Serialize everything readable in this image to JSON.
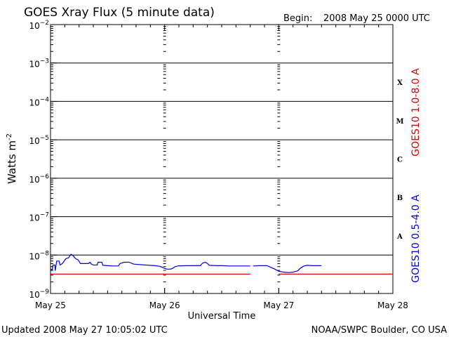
{
  "chart_data": {
    "type": "line",
    "title": "GOES Xray Flux (5 minute data)",
    "begin_label": "Begin:",
    "begin_value": "2008 May 25 0000 UTC",
    "xlabel": "Universal Time",
    "ylabel": "Watts m",
    "ylabel_exp": "-2",
    "x_tick_labels": [
      "May 25",
      "May 26",
      "May 27",
      "May 28"
    ],
    "x_unit": "hours since 2008 May 25 0000 UTC",
    "xlim": [
      0,
      72
    ],
    "y_scale": "log",
    "ylim_exp": [
      -9,
      -2
    ],
    "y_tick_exponents": [
      -9,
      -8,
      -7,
      -6,
      -5,
      -4,
      -3,
      -2
    ],
    "y_tick_base": "10",
    "flare_classes": [
      {
        "label": "A",
        "exp": -8
      },
      {
        "label": "B",
        "exp": -7
      },
      {
        "label": "C",
        "exp": -6
      },
      {
        "label": "M",
        "exp": -5
      },
      {
        "label": "X",
        "exp": -4
      }
    ],
    "legend_placement": "right, rotated",
    "series": [
      {
        "name": "GOES10 1.0-8.0 A",
        "color": "#dd0000",
        "segments": [
          [
            [
              0,
              3.2e-09
            ],
            [
              42,
              3.2e-09
            ]
          ],
          [
            [
              48,
              3.2e-09
            ],
            [
              72,
              3.2e-09
            ]
          ]
        ]
      },
      {
        "name": "GOES10 0.5-4.0 A",
        "color": "#0000dd",
        "segments": [
          [
            [
              0.0,
              4.2e-09
            ],
            [
              0.4,
              4.2e-09
            ],
            [
              0.5,
              5.5e-09
            ],
            [
              0.9,
              5.5e-09
            ],
            [
              1.0,
              4e-09
            ],
            [
              1.3,
              7e-09
            ],
            [
              1.8,
              7e-09
            ],
            [
              2.0,
              5.5e-09
            ],
            [
              2.5,
              6e-09
            ],
            [
              3.2,
              8e-09
            ],
            [
              3.8,
              8.5e-09
            ],
            [
              4.3,
              1.05e-08
            ],
            [
              4.8,
              9.5e-09
            ],
            [
              5.3,
              8e-09
            ],
            [
              5.8,
              7.5e-09
            ],
            [
              6.3,
              6e-09
            ],
            [
              8.0,
              6e-09
            ],
            [
              8.3,
              6.5e-09
            ],
            [
              8.6,
              5.8e-09
            ],
            [
              9.0,
              5.5e-09
            ],
            [
              9.8,
              5.5e-09
            ],
            [
              10.0,
              6.5e-09
            ],
            [
              10.8,
              6.5e-09
            ],
            [
              11.0,
              5.4e-09
            ],
            [
              12.0,
              5.3e-09
            ],
            [
              13.0,
              5.2e-09
            ],
            [
              14.3,
              5.2e-09
            ],
            [
              14.6,
              6e-09
            ],
            [
              15.5,
              6.5e-09
            ],
            [
              16.5,
              6.5e-09
            ],
            [
              17.5,
              5.8e-09
            ],
            [
              20.0,
              5.5e-09
            ],
            [
              22.0,
              5.3e-09
            ],
            [
              23.0,
              5.1e-09
            ],
            [
              23.8,
              4.6e-09
            ],
            [
              24.5,
              4.3e-09
            ],
            [
              25.3,
              4.3e-09
            ],
            [
              25.8,
              4.6e-09
            ],
            [
              26.2,
              5e-09
            ],
            [
              26.8,
              5.2e-09
            ],
            [
              28.5,
              5.3e-09
            ],
            [
              30.0,
              5.3e-09
            ],
            [
              31.5,
              5.3e-09
            ],
            [
              32.0,
              6.2e-09
            ],
            [
              32.6,
              6.5e-09
            ],
            [
              33.0,
              6e-09
            ],
            [
              33.4,
              5.4e-09
            ],
            [
              35.0,
              5.3e-09
            ],
            [
              36.0,
              5.3e-09
            ],
            [
              37.5,
              5.2e-09
            ],
            [
              40.0,
              5.2e-09
            ],
            [
              42.0,
              5.2e-09
            ]
          ],
          [
            [
              42.6,
              5.2e-09
            ],
            [
              44.0,
              5.3e-09
            ],
            [
              45.5,
              5.3e-09
            ],
            [
              46.0,
              5e-09
            ],
            [
              47.0,
              4.4e-09
            ],
            [
              48.0,
              3.8e-09
            ],
            [
              49.0,
              3.6e-09
            ],
            [
              50.0,
              3.5e-09
            ],
            [
              51.0,
              3.6e-09
            ],
            [
              52.0,
              3.9e-09
            ],
            [
              52.6,
              4.6e-09
            ],
            [
              53.3,
              5.2e-09
            ],
            [
              54.0,
              5.4e-09
            ],
            [
              55.0,
              5.3e-09
            ],
            [
              56.0,
              5.3e-09
            ],
            [
              57.0,
              5.3e-09
            ]
          ]
        ]
      }
    ]
  },
  "footer": {
    "updated": "Updated 2008 May 27 10:05:02 UTC",
    "credit": "NOAA/SWPC Boulder, CO USA"
  }
}
